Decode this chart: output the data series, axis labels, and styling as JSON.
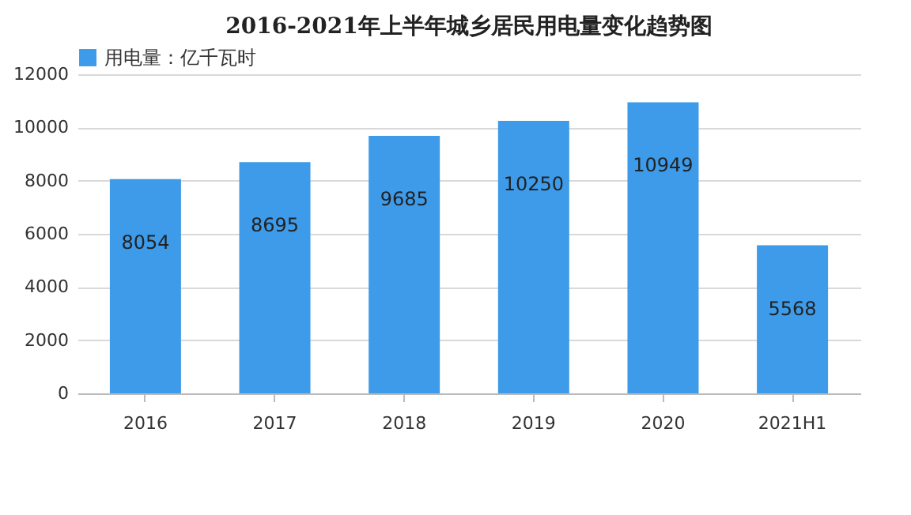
{
  "chart_data": {
    "type": "bar",
    "title": "2016-2021年上半年城乡居民用电量变化趋势图",
    "categories": [
      "2016",
      "2017",
      "2018",
      "2019",
      "2020",
      "2021H1"
    ],
    "series": [
      {
        "name": "用电量：亿千瓦时",
        "color": "#3d9be9",
        "values": [
          8054,
          8695,
          9685,
          10250,
          10949,
          5568
        ]
      }
    ],
    "ylim": [
      0,
      12000
    ],
    "yticks": [
      0,
      2000,
      4000,
      6000,
      8000,
      10000,
      12000
    ],
    "grid": "y",
    "legend": "top",
    "data_labels": true
  }
}
